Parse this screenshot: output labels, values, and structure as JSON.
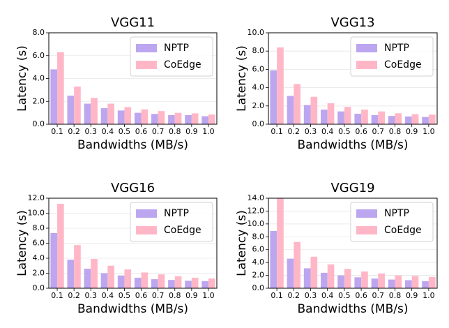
{
  "chart_data": [
    {
      "type": "bar",
      "title": "VGG11",
      "xlabel": "Bandwidths (MB/s)",
      "ylabel": "Latency (s)",
      "categories": [
        "0.1",
        "0.2",
        "0.3",
        "0.4",
        "0.5",
        "0.6",
        "0.7",
        "0.8",
        "0.9",
        "1.0"
      ],
      "series": [
        {
          "name": "NPTP",
          "color": "#bda6f0",
          "values": [
            4.8,
            2.5,
            1.8,
            1.4,
            1.2,
            1.0,
            0.9,
            0.8,
            0.8,
            0.7
          ]
        },
        {
          "name": "CoEdge",
          "color": "#ffb7c7",
          "values": [
            6.3,
            3.3,
            2.3,
            1.8,
            1.5,
            1.3,
            1.15,
            1.0,
            0.95,
            0.85
          ]
        }
      ],
      "ylim": [
        0,
        8
      ],
      "yticks": [
        {
          "value": 0,
          "label": "0.0"
        },
        {
          "value": 2,
          "label": "2.0"
        },
        {
          "value": 4,
          "label": "4.0"
        },
        {
          "value": 6,
          "label": "6.0"
        },
        {
          "value": 8,
          "label": "8.0"
        }
      ],
      "legend": "upper right",
      "grid": true
    },
    {
      "type": "bar",
      "title": "VGG13",
      "xlabel": "Bandwidths (MB/s)",
      "ylabel": "Latency (s)",
      "categories": [
        "0.1",
        "0.2",
        "0.3",
        "0.4",
        "0.5",
        "0.6",
        "0.7",
        "0.8",
        "0.9",
        "1.0"
      ],
      "series": [
        {
          "name": "NPTP",
          "color": "#bda6f0",
          "values": [
            5.9,
            3.1,
            2.1,
            1.6,
            1.4,
            1.15,
            1.0,
            0.9,
            0.85,
            0.8
          ]
        },
        {
          "name": "CoEdge",
          "color": "#ffb7c7",
          "values": [
            8.4,
            4.4,
            3.0,
            2.3,
            1.9,
            1.6,
            1.4,
            1.2,
            1.1,
            1.05
          ]
        }
      ],
      "ylim": [
        0,
        10
      ],
      "yticks": [
        {
          "value": 0,
          "label": "0.0"
        },
        {
          "value": 2,
          "label": "2.0"
        },
        {
          "value": 4,
          "label": "4.0"
        },
        {
          "value": 6,
          "label": "6.0"
        },
        {
          "value": 8,
          "label": "8.0"
        },
        {
          "value": 10,
          "label": "10.0"
        }
      ],
      "legend": "upper right",
      "grid": true
    },
    {
      "type": "bar",
      "title": "VGG16",
      "xlabel": "Bandwidths (MB/s)",
      "ylabel": "Latency (s)",
      "categories": [
        "0.1",
        "0.2",
        "0.3",
        "0.4",
        "0.5",
        "0.6",
        "0.7",
        "0.8",
        "0.9",
        "1.0"
      ],
      "series": [
        {
          "name": "NPTP",
          "color": "#bda6f0",
          "values": [
            7.35,
            3.8,
            2.6,
            2.0,
            1.7,
            1.4,
            1.2,
            1.1,
            1.0,
            0.95
          ]
        },
        {
          "name": "CoEdge",
          "color": "#ffb7c7",
          "values": [
            11.25,
            5.75,
            3.9,
            3.0,
            2.5,
            2.1,
            1.85,
            1.6,
            1.4,
            1.3
          ]
        }
      ],
      "ylim": [
        0,
        12
      ],
      "yticks": [
        {
          "value": 0,
          "label": "0.0"
        },
        {
          "value": 2,
          "label": "2.0"
        },
        {
          "value": 4,
          "label": "4.0"
        },
        {
          "value": 6,
          "label": "6.0"
        },
        {
          "value": 8,
          "label": "8.0"
        },
        {
          "value": 10,
          "label": "10.0"
        },
        {
          "value": 12,
          "label": "12.0"
        }
      ],
      "legend": "upper right",
      "grid": true
    },
    {
      "type": "bar",
      "title": "VGG19",
      "xlabel": "Bandwidths (MB/s)",
      "ylabel": "Latency (s)",
      "categories": [
        "0.1",
        "0.2",
        "0.3",
        "0.4",
        "0.5",
        "0.6",
        "0.7",
        "0.8",
        "0.9",
        "1.0"
      ],
      "series": [
        {
          "name": "NPTP",
          "color": "#bda6f0",
          "values": [
            8.9,
            4.6,
            3.1,
            2.4,
            2.0,
            1.7,
            1.5,
            1.35,
            1.25,
            1.1
          ]
        },
        {
          "name": "CoEdge",
          "color": "#ffb7c7",
          "values": [
            14.0,
            7.2,
            4.9,
            3.7,
            3.0,
            2.6,
            2.3,
            2.0,
            1.9,
            1.75
          ]
        }
      ],
      "ylim": [
        0,
        14
      ],
      "yticks": [
        {
          "value": 0,
          "label": "0.0"
        },
        {
          "value": 2,
          "label": "2.0"
        },
        {
          "value": 4,
          "label": "4.0"
        },
        {
          "value": 6,
          "label": "6.0"
        },
        {
          "value": 8,
          "label": "8.0"
        },
        {
          "value": 10,
          "label": "10.0"
        },
        {
          "value": 12,
          "label": "12.0"
        },
        {
          "value": 14,
          "label": "14.0"
        }
      ],
      "legend": "upper right",
      "grid": true
    }
  ]
}
